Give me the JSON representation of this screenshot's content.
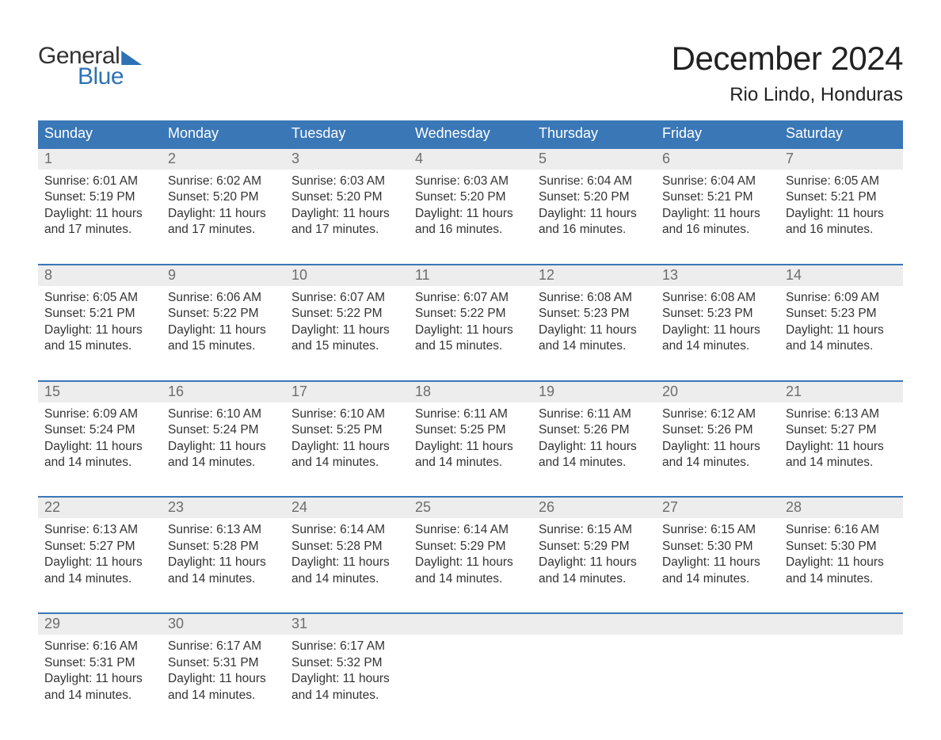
{
  "logo": {
    "word1": "General",
    "word2": "Blue"
  },
  "title": "December 2024",
  "location": "Rio Lindo, Honduras",
  "colors": {
    "header_bg": "#3a77b7",
    "header_text": "#ffffff",
    "daynum_bg": "#ededed",
    "daynum_text": "#6d6d6d",
    "body_text": "#333333",
    "accent": "#2f72b4",
    "page_bg": "#ffffff"
  },
  "weekdays": [
    "Sunday",
    "Monday",
    "Tuesday",
    "Wednesday",
    "Thursday",
    "Friday",
    "Saturday"
  ],
  "weeks": [
    [
      {
        "n": "1",
        "sunrise": "Sunrise: 6:01 AM",
        "sunset": "Sunset: 5:19 PM",
        "day1": "Daylight: 11 hours",
        "day2": "and 17 minutes."
      },
      {
        "n": "2",
        "sunrise": "Sunrise: 6:02 AM",
        "sunset": "Sunset: 5:20 PM",
        "day1": "Daylight: 11 hours",
        "day2": "and 17 minutes."
      },
      {
        "n": "3",
        "sunrise": "Sunrise: 6:03 AM",
        "sunset": "Sunset: 5:20 PM",
        "day1": "Daylight: 11 hours",
        "day2": "and 17 minutes."
      },
      {
        "n": "4",
        "sunrise": "Sunrise: 6:03 AM",
        "sunset": "Sunset: 5:20 PM",
        "day1": "Daylight: 11 hours",
        "day2": "and 16 minutes."
      },
      {
        "n": "5",
        "sunrise": "Sunrise: 6:04 AM",
        "sunset": "Sunset: 5:20 PM",
        "day1": "Daylight: 11 hours",
        "day2": "and 16 minutes."
      },
      {
        "n": "6",
        "sunrise": "Sunrise: 6:04 AM",
        "sunset": "Sunset: 5:21 PM",
        "day1": "Daylight: 11 hours",
        "day2": "and 16 minutes."
      },
      {
        "n": "7",
        "sunrise": "Sunrise: 6:05 AM",
        "sunset": "Sunset: 5:21 PM",
        "day1": "Daylight: 11 hours",
        "day2": "and 16 minutes."
      }
    ],
    [
      {
        "n": "8",
        "sunrise": "Sunrise: 6:05 AM",
        "sunset": "Sunset: 5:21 PM",
        "day1": "Daylight: 11 hours",
        "day2": "and 15 minutes."
      },
      {
        "n": "9",
        "sunrise": "Sunrise: 6:06 AM",
        "sunset": "Sunset: 5:22 PM",
        "day1": "Daylight: 11 hours",
        "day2": "and 15 minutes."
      },
      {
        "n": "10",
        "sunrise": "Sunrise: 6:07 AM",
        "sunset": "Sunset: 5:22 PM",
        "day1": "Daylight: 11 hours",
        "day2": "and 15 minutes."
      },
      {
        "n": "11",
        "sunrise": "Sunrise: 6:07 AM",
        "sunset": "Sunset: 5:22 PM",
        "day1": "Daylight: 11 hours",
        "day2": "and 15 minutes."
      },
      {
        "n": "12",
        "sunrise": "Sunrise: 6:08 AM",
        "sunset": "Sunset: 5:23 PM",
        "day1": "Daylight: 11 hours",
        "day2": "and 14 minutes."
      },
      {
        "n": "13",
        "sunrise": "Sunrise: 6:08 AM",
        "sunset": "Sunset: 5:23 PM",
        "day1": "Daylight: 11 hours",
        "day2": "and 14 minutes."
      },
      {
        "n": "14",
        "sunrise": "Sunrise: 6:09 AM",
        "sunset": "Sunset: 5:23 PM",
        "day1": "Daylight: 11 hours",
        "day2": "and 14 minutes."
      }
    ],
    [
      {
        "n": "15",
        "sunrise": "Sunrise: 6:09 AM",
        "sunset": "Sunset: 5:24 PM",
        "day1": "Daylight: 11 hours",
        "day2": "and 14 minutes."
      },
      {
        "n": "16",
        "sunrise": "Sunrise: 6:10 AM",
        "sunset": "Sunset: 5:24 PM",
        "day1": "Daylight: 11 hours",
        "day2": "and 14 minutes."
      },
      {
        "n": "17",
        "sunrise": "Sunrise: 6:10 AM",
        "sunset": "Sunset: 5:25 PM",
        "day1": "Daylight: 11 hours",
        "day2": "and 14 minutes."
      },
      {
        "n": "18",
        "sunrise": "Sunrise: 6:11 AM",
        "sunset": "Sunset: 5:25 PM",
        "day1": "Daylight: 11 hours",
        "day2": "and 14 minutes."
      },
      {
        "n": "19",
        "sunrise": "Sunrise: 6:11 AM",
        "sunset": "Sunset: 5:26 PM",
        "day1": "Daylight: 11 hours",
        "day2": "and 14 minutes."
      },
      {
        "n": "20",
        "sunrise": "Sunrise: 6:12 AM",
        "sunset": "Sunset: 5:26 PM",
        "day1": "Daylight: 11 hours",
        "day2": "and 14 minutes."
      },
      {
        "n": "21",
        "sunrise": "Sunrise: 6:13 AM",
        "sunset": "Sunset: 5:27 PM",
        "day1": "Daylight: 11 hours",
        "day2": "and 14 minutes."
      }
    ],
    [
      {
        "n": "22",
        "sunrise": "Sunrise: 6:13 AM",
        "sunset": "Sunset: 5:27 PM",
        "day1": "Daylight: 11 hours",
        "day2": "and 14 minutes."
      },
      {
        "n": "23",
        "sunrise": "Sunrise: 6:13 AM",
        "sunset": "Sunset: 5:28 PM",
        "day1": "Daylight: 11 hours",
        "day2": "and 14 minutes."
      },
      {
        "n": "24",
        "sunrise": "Sunrise: 6:14 AM",
        "sunset": "Sunset: 5:28 PM",
        "day1": "Daylight: 11 hours",
        "day2": "and 14 minutes."
      },
      {
        "n": "25",
        "sunrise": "Sunrise: 6:14 AM",
        "sunset": "Sunset: 5:29 PM",
        "day1": "Daylight: 11 hours",
        "day2": "and 14 minutes."
      },
      {
        "n": "26",
        "sunrise": "Sunrise: 6:15 AM",
        "sunset": "Sunset: 5:29 PM",
        "day1": "Daylight: 11 hours",
        "day2": "and 14 minutes."
      },
      {
        "n": "27",
        "sunrise": "Sunrise: 6:15 AM",
        "sunset": "Sunset: 5:30 PM",
        "day1": "Daylight: 11 hours",
        "day2": "and 14 minutes."
      },
      {
        "n": "28",
        "sunrise": "Sunrise: 6:16 AM",
        "sunset": "Sunset: 5:30 PM",
        "day1": "Daylight: 11 hours",
        "day2": "and 14 minutes."
      }
    ],
    [
      {
        "n": "29",
        "sunrise": "Sunrise: 6:16 AM",
        "sunset": "Sunset: 5:31 PM",
        "day1": "Daylight: 11 hours",
        "day2": "and 14 minutes."
      },
      {
        "n": "30",
        "sunrise": "Sunrise: 6:17 AM",
        "sunset": "Sunset: 5:31 PM",
        "day1": "Daylight: 11 hours",
        "day2": "and 14 minutes."
      },
      {
        "n": "31",
        "sunrise": "Sunrise: 6:17 AM",
        "sunset": "Sunset: 5:32 PM",
        "day1": "Daylight: 11 hours",
        "day2": "and 14 minutes."
      },
      null,
      null,
      null,
      null
    ]
  ]
}
